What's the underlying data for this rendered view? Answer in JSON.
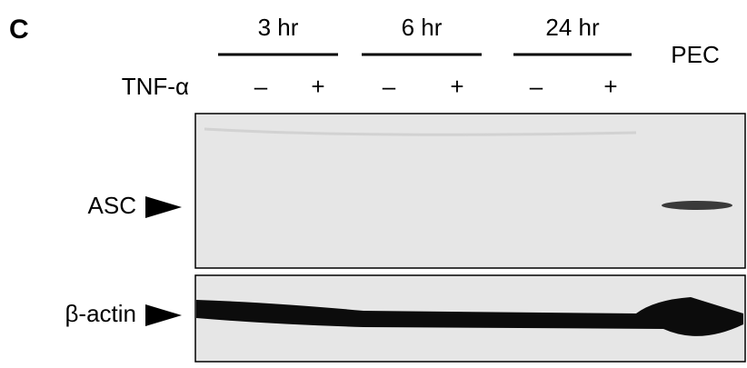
{
  "panel_label": "C",
  "row_label": "TNF-α",
  "groups": [
    {
      "label": "3 hr",
      "signs": [
        "–",
        "+"
      ]
    },
    {
      "label": "6 hr",
      "signs": [
        "–",
        "+"
      ]
    },
    {
      "label": "24 hr",
      "signs": [
        "–",
        "+"
      ]
    }
  ],
  "extra_lane": "PEC",
  "blots": [
    {
      "label": "ASC"
    },
    {
      "label": "β-actin"
    }
  ]
}
